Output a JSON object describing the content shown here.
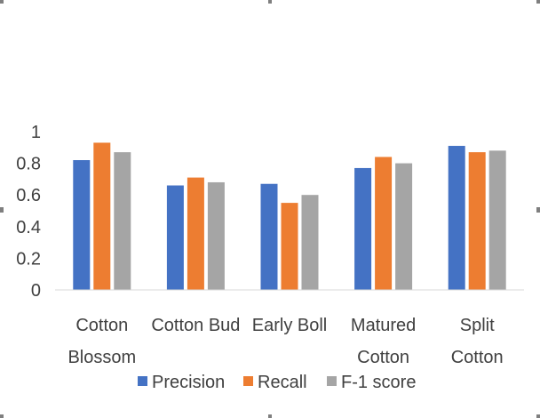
{
  "chart_data": {
    "type": "bar",
    "categories": [
      [
        "Cotton",
        "Blossom"
      ],
      [
        "Cotton Bud"
      ],
      [
        "Early Boll"
      ],
      [
        "Matured",
        "Cotton"
      ],
      [
        "Split",
        "Cotton"
      ]
    ],
    "series": [
      {
        "name": "Precision",
        "color": "#4472C4",
        "values": [
          0.82,
          0.66,
          0.67,
          0.77,
          0.91
        ]
      },
      {
        "name": "Recall",
        "color": "#ED7D31",
        "values": [
          0.93,
          0.71,
          0.55,
          0.84,
          0.87
        ]
      },
      {
        "name": "F-1 score",
        "color": "#A5A5A5",
        "values": [
          0.87,
          0.68,
          0.6,
          0.8,
          0.88
        ]
      }
    ],
    "ylim": [
      0,
      1
    ],
    "yticks": [
      "0",
      "0.2",
      "0.4",
      "0.6",
      "0.8",
      "1"
    ],
    "ytick_values": [
      0,
      0.2,
      0.4,
      0.6,
      0.8,
      1
    ],
    "grid": false,
    "legend_position": "bottom"
  }
}
